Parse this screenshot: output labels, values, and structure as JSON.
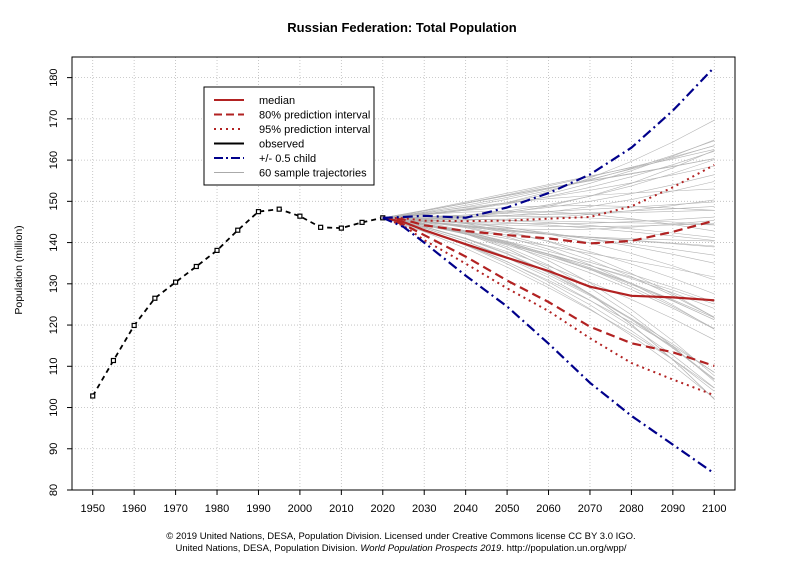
{
  "chart_data": {
    "type": "line",
    "title": "Russian Federation: Total Population",
    "xlabel": "",
    "ylabel": "Population (million)",
    "xlim": [
      1945,
      2105
    ],
    "ylim": [
      80,
      185
    ],
    "x_ticks": [
      1950,
      1960,
      1970,
      1980,
      1990,
      2000,
      2010,
      2020,
      2030,
      2040,
      2050,
      2060,
      2070,
      2080,
      2090,
      2100
    ],
    "y_ticks": [
      80,
      90,
      100,
      110,
      120,
      130,
      140,
      150,
      160,
      170,
      180
    ],
    "grid": true,
    "legend_position": "top-left",
    "legend": [
      {
        "label": "median",
        "style": "solid",
        "color": "#b22222"
      },
      {
        "label": "80% prediction interval",
        "style": "dashed",
        "color": "#b22222"
      },
      {
        "label": "95% prediction interval",
        "style": "dotted",
        "color": "#b22222"
      },
      {
        "label": "observed",
        "style": "solid",
        "color": "#000000"
      },
      {
        "label": "+/- 0.5 child",
        "style": "dashdot",
        "color": "#00008b"
      },
      {
        "label": "60 sample trajectories",
        "style": "solid",
        "color": "#aaaaaa"
      }
    ],
    "series": [
      {
        "name": "observed",
        "x": [
          1950,
          1955,
          1960,
          1965,
          1970,
          1975,
          1980,
          1985,
          1990,
          1995,
          2000,
          2005,
          2010,
          2015,
          2020
        ],
        "values": [
          102.8,
          111.4,
          119.9,
          126.5,
          130.4,
          134.2,
          138.1,
          143.0,
          147.5,
          148.1,
          146.4,
          143.7,
          143.5,
          144.9,
          146.0
        ]
      },
      {
        "name": "median",
        "x": [
          2020,
          2025,
          2030,
          2040,
          2050,
          2060,
          2070,
          2080,
          2090,
          2100
        ],
        "values": [
          146.0,
          145.0,
          143.0,
          139.6,
          136.3,
          133.1,
          129.3,
          127.1,
          126.7,
          126.0
        ]
      },
      {
        "name": "80% upper",
        "x": [
          2020,
          2025,
          2030,
          2040,
          2050,
          2060,
          2070,
          2080,
          2090,
          2100
        ],
        "values": [
          146.0,
          145.6,
          144.2,
          142.8,
          141.8,
          141.0,
          139.8,
          140.4,
          142.6,
          145.3
        ]
      },
      {
        "name": "80% lower",
        "x": [
          2020,
          2025,
          2030,
          2040,
          2050,
          2060,
          2070,
          2080,
          2090,
          2100
        ],
        "values": [
          146.0,
          144.4,
          141.8,
          136.6,
          130.8,
          125.6,
          119.6,
          115.6,
          113.4,
          110.1
        ]
      },
      {
        "name": "95% upper",
        "x": [
          2020,
          2025,
          2030,
          2040,
          2050,
          2060,
          2070,
          2080,
          2090,
          2100
        ],
        "values": [
          146.0,
          145.9,
          145.3,
          145.2,
          145.3,
          145.8,
          146.2,
          148.8,
          153.4,
          158.8
        ]
      },
      {
        "name": "95% lower",
        "x": [
          2020,
          2025,
          2030,
          2040,
          2050,
          2060,
          2070,
          2080,
          2090,
          2100
        ],
        "values": [
          146.0,
          144.1,
          140.6,
          134.9,
          128.9,
          123.4,
          116.8,
          110.8,
          106.8,
          103.0
        ]
      },
      {
        "name": "+/- 0.5 child upper",
        "x": [
          2020,
          2025,
          2030,
          2040,
          2050,
          2060,
          2070,
          2080,
          2090,
          2100
        ],
        "values": [
          146.0,
          146.2,
          146.5,
          146.0,
          148.5,
          152.0,
          156.5,
          163.0,
          172.0,
          182.5
        ]
      },
      {
        "name": "+/- 0.5 child lower",
        "x": [
          2020,
          2025,
          2030,
          2040,
          2050,
          2060,
          2070,
          2080,
          2090,
          2100
        ],
        "values": [
          146.0,
          143.8,
          140.0,
          132.0,
          124.5,
          115.5,
          106.0,
          98.0,
          91.0,
          84.0
        ]
      }
    ],
    "sample_trajectories": {
      "count": 60,
      "x": [
        2020,
        2030,
        2040,
        2050,
        2060,
        2070,
        2080,
        2090,
        2100
      ],
      "range_2100": [
        102,
        170
      ]
    }
  },
  "caption": {
    "line1": "© 2019 United Nations, DESA, Population Division. Licensed under Creative Commons license CC BY 3.0 IGO.",
    "line2_prefix": "United Nations, DESA, Population Division. ",
    "line2_italic": "World Population Prospects 2019",
    "line2_suffix": ". http://population.un.org/wpp/"
  }
}
